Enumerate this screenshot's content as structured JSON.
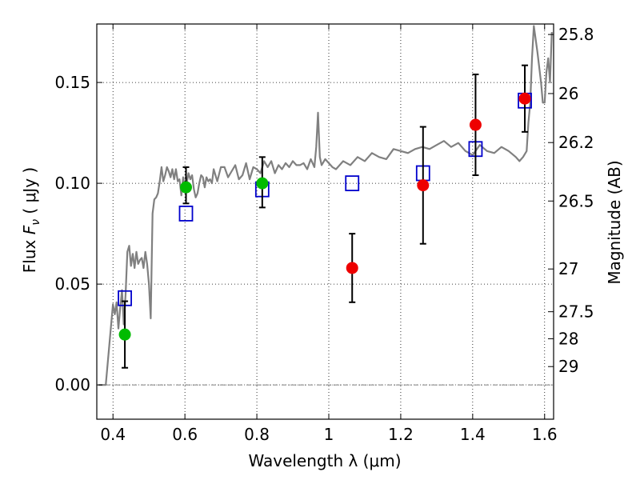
{
  "chart_data": {
    "type": "scatter",
    "xlabel": "Wavelength  λ (μm)",
    "ylabel_parts": [
      "Flux  ",
      "F",
      "ν",
      "  (  μJy )"
    ],
    "y2label": "Magnitude (AB)",
    "xlim": [
      0.355,
      1.625
    ],
    "ylim": [
      -0.017,
      0.179
    ],
    "grid": true,
    "grid_style": "dotted",
    "x_ticks": [
      {
        "value": 0.4,
        "label": "0.4"
      },
      {
        "value": 0.6,
        "label": "0.6"
      },
      {
        "value": 0.8,
        "label": "0.8"
      },
      {
        "value": 1.0,
        "label": "1"
      },
      {
        "value": 1.2,
        "label": "1.2"
      },
      {
        "value": 1.4,
        "label": "1.4"
      },
      {
        "value": 1.6,
        "label": "1.6"
      }
    ],
    "y_ticks": [
      {
        "value": 0.0,
        "label": "0.00"
      },
      {
        "value": 0.05,
        "label": "0.05"
      },
      {
        "value": 0.1,
        "label": "0.10"
      },
      {
        "value": 0.15,
        "label": "0.15"
      }
    ],
    "mag_ticks": [
      {
        "label": "25.8",
        "flux": 0.1738
      },
      {
        "label": "26",
        "flux": 0.1445
      },
      {
        "label": "26.2",
        "flux": 0.1202
      },
      {
        "label": "26.5",
        "flux": 0.0912
      },
      {
        "label": "27",
        "flux": 0.0575
      },
      {
        "label": "27.5",
        "flux": 0.0363
      },
      {
        "label": "28",
        "flux": 0.0229
      },
      {
        "label": "29",
        "flux": 0.0091
      }
    ],
    "zero_line": 0.0,
    "colors": {
      "template": "#808080",
      "model": "#0000cc",
      "green": "#00bb00",
      "red": "#ee0000",
      "errorbar": "#000000",
      "zero_line": "#555555"
    },
    "series": [
      {
        "kind": "template_spectrum",
        "x": [
          0.36,
          0.38,
          0.39,
          0.4,
          0.405,
          0.41,
          0.415,
          0.42,
          0.425,
          0.43,
          0.435,
          0.44,
          0.445,
          0.45,
          0.455,
          0.46,
          0.465,
          0.47,
          0.475,
          0.48,
          0.485,
          0.49,
          0.495,
          0.5,
          0.505,
          0.51,
          0.515,
          0.52,
          0.525,
          0.53,
          0.535,
          0.54,
          0.545,
          0.55,
          0.555,
          0.56,
          0.565,
          0.57,
          0.575,
          0.58,
          0.585,
          0.59,
          0.595,
          0.6,
          0.605,
          0.61,
          0.615,
          0.62,
          0.625,
          0.63,
          0.635,
          0.64,
          0.645,
          0.65,
          0.655,
          0.66,
          0.665,
          0.67,
          0.675,
          0.68,
          0.69,
          0.7,
          0.71,
          0.72,
          0.73,
          0.74,
          0.75,
          0.76,
          0.77,
          0.78,
          0.79,
          0.8,
          0.81,
          0.82,
          0.83,
          0.84,
          0.85,
          0.86,
          0.87,
          0.88,
          0.89,
          0.9,
          0.91,
          0.92,
          0.93,
          0.94,
          0.95,
          0.96,
          0.965,
          0.97,
          0.975,
          0.98,
          0.99,
          1.0,
          1.01,
          1.02,
          1.04,
          1.06,
          1.08,
          1.1,
          1.12,
          1.14,
          1.16,
          1.18,
          1.2,
          1.22,
          1.24,
          1.26,
          1.28,
          1.3,
          1.32,
          1.34,
          1.36,
          1.38,
          1.4,
          1.42,
          1.44,
          1.46,
          1.48,
          1.5,
          1.52,
          1.53,
          1.54,
          1.55,
          1.555,
          1.56,
          1.565,
          1.57,
          1.58,
          1.59,
          1.595,
          1.6,
          1.605,
          1.61,
          1.615,
          1.62
        ],
        "y": [
          0.0,
          0.0,
          0.02,
          0.04,
          0.035,
          0.041,
          0.028,
          0.038,
          0.047,
          0.03,
          0.045,
          0.066,
          0.069,
          0.059,
          0.065,
          0.058,
          0.066,
          0.06,
          0.062,
          0.063,
          0.058,
          0.066,
          0.06,
          0.05,
          0.033,
          0.085,
          0.092,
          0.093,
          0.095,
          0.101,
          0.108,
          0.101,
          0.104,
          0.108,
          0.106,
          0.103,
          0.107,
          0.102,
          0.107,
          0.101,
          0.102,
          0.094,
          0.103,
          0.098,
          0.1,
          0.105,
          0.102,
          0.104,
          0.097,
          0.093,
          0.095,
          0.1,
          0.104,
          0.103,
          0.098,
          0.103,
          0.101,
          0.102,
          0.1,
          0.107,
          0.101,
          0.108,
          0.108,
          0.103,
          0.106,
          0.109,
          0.102,
          0.104,
          0.11,
          0.102,
          0.108,
          0.107,
          0.105,
          0.111,
          0.108,
          0.111,
          0.105,
          0.109,
          0.107,
          0.11,
          0.108,
          0.111,
          0.109,
          0.109,
          0.11,
          0.107,
          0.112,
          0.108,
          0.118,
          0.135,
          0.113,
          0.109,
          0.112,
          0.11,
          0.108,
          0.107,
          0.111,
          0.109,
          0.113,
          0.111,
          0.115,
          0.113,
          0.112,
          0.117,
          0.116,
          0.115,
          0.117,
          0.118,
          0.117,
          0.119,
          0.121,
          0.118,
          0.12,
          0.116,
          0.114,
          0.119,
          0.116,
          0.115,
          0.118,
          0.116,
          0.113,
          0.111,
          0.113,
          0.116,
          0.13,
          0.14,
          0.162,
          0.178,
          0.165,
          0.15,
          0.14,
          0.14,
          0.155,
          0.162,
          0.15,
          0.175
        ]
      },
      {
        "kind": "model",
        "marker": "square-open",
        "x": [
          0.433,
          0.603,
          0.815,
          1.065,
          1.262,
          1.408,
          1.545
        ],
        "y": [
          0.043,
          0.085,
          0.097,
          0.1,
          0.105,
          0.117,
          0.141
        ]
      },
      {
        "kind": "observed",
        "marker": "circle",
        "x": [
          0.433,
          0.603,
          0.815,
          1.065,
          1.262,
          1.408,
          1.545
        ],
        "y": [
          0.025,
          0.098,
          0.1,
          0.058,
          0.099,
          0.129,
          0.142
        ],
        "color_keys": [
          "green",
          "green",
          "green",
          "red",
          "red",
          "red",
          "red"
        ],
        "err_low": [
          0.0165,
          0.008,
          0.012,
          0.017,
          0.029,
          0.025,
          0.0165
        ],
        "err_high": [
          0.0165,
          0.01,
          0.013,
          0.017,
          0.029,
          0.025,
          0.0165
        ]
      }
    ]
  }
}
